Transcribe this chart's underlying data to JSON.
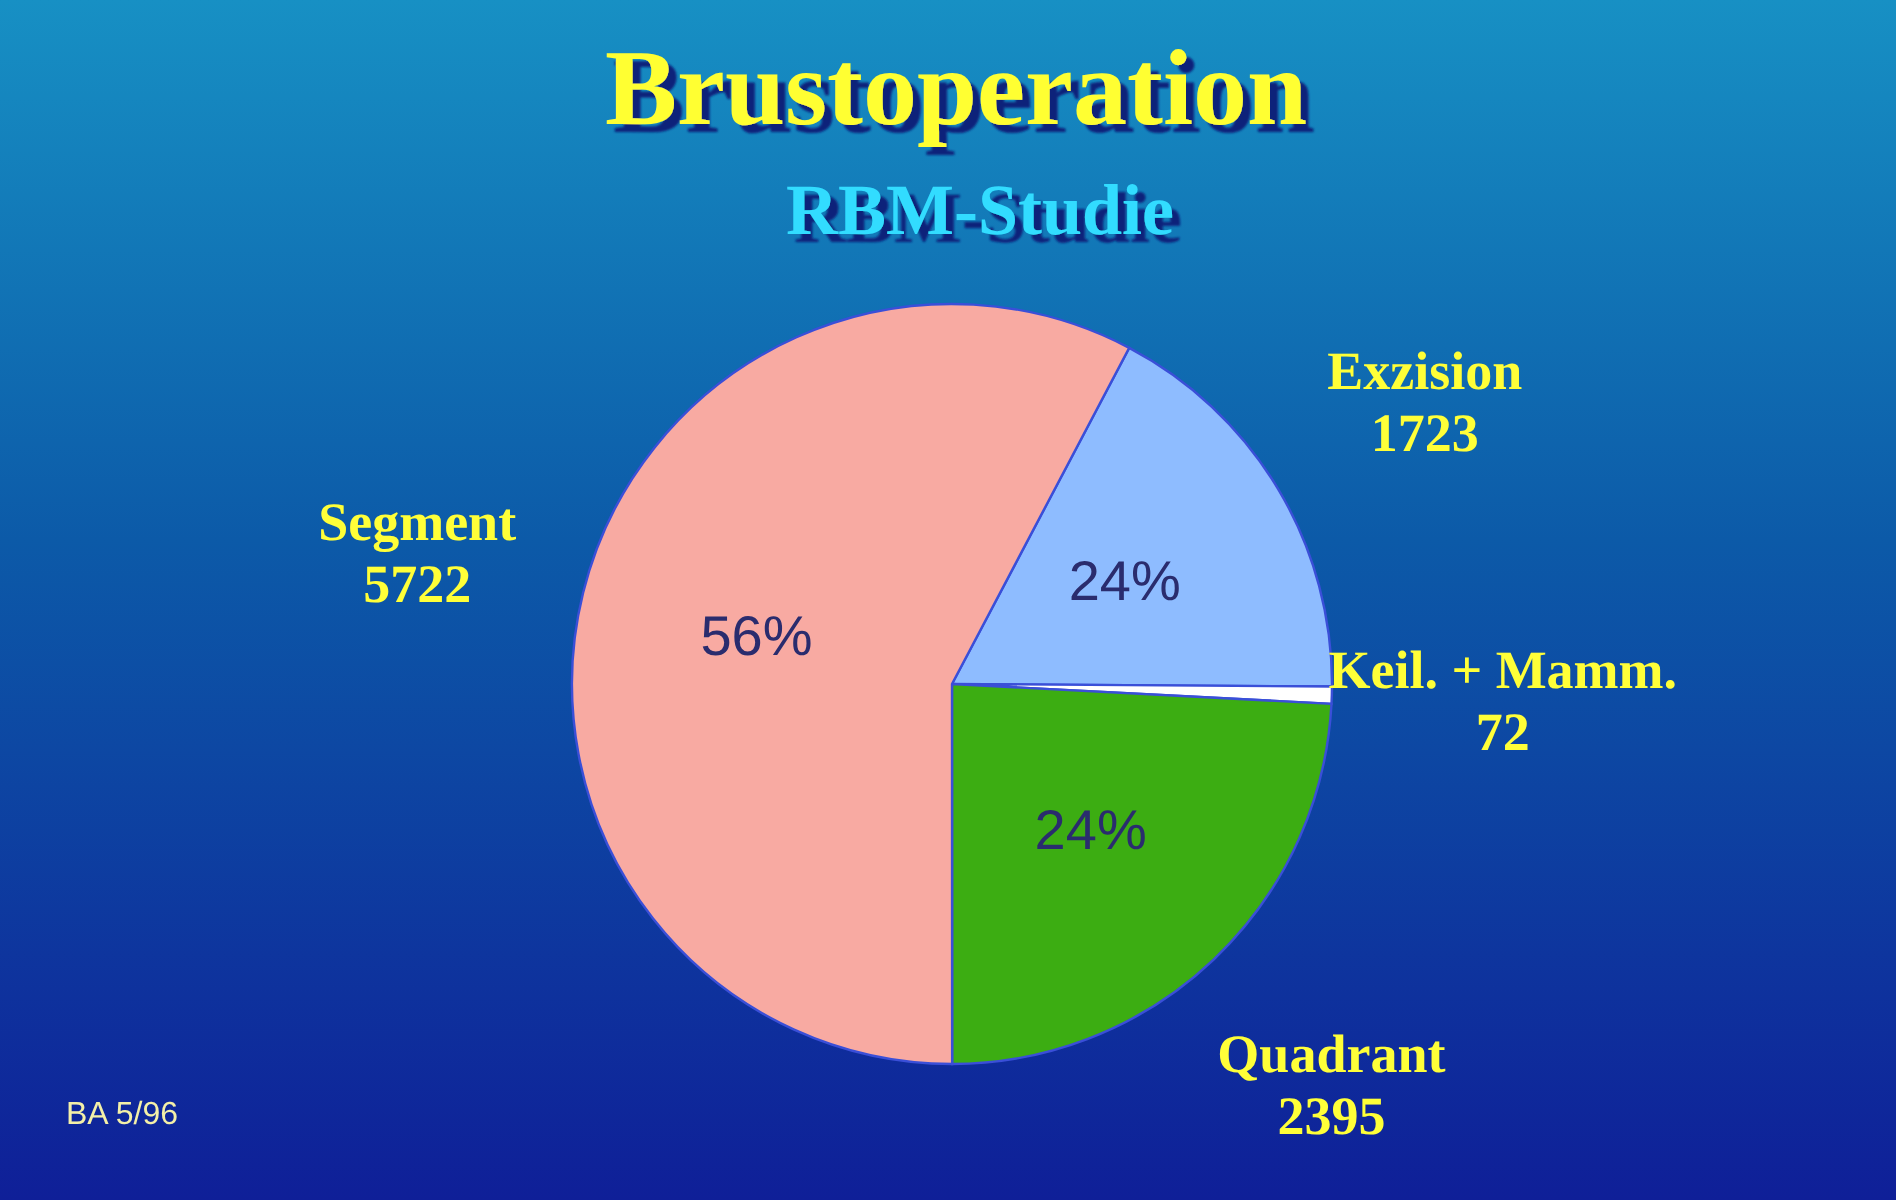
{
  "chart_data": {
    "type": "pie",
    "title": "Brustoperation",
    "subtitle": "RBM-Studie",
    "categories": [
      "Exzision",
      "Keil. + Mamm.",
      "Quadrant",
      "Segment"
    ],
    "values": [
      1723,
      72,
      2395,
      5722
    ],
    "colors": [
      "#8ebcff",
      "#ffffff",
      "#3cad12",
      "#f8aaa2"
    ],
    "data_labels": true,
    "annotations": [
      {
        "text": "24%",
        "x": "Exzision"
      },
      {
        "text": "24%",
        "x": "Quadrant"
      },
      {
        "text": "56%",
        "x": "Segment"
      },
      "BA 5/96"
    ]
  }
}
